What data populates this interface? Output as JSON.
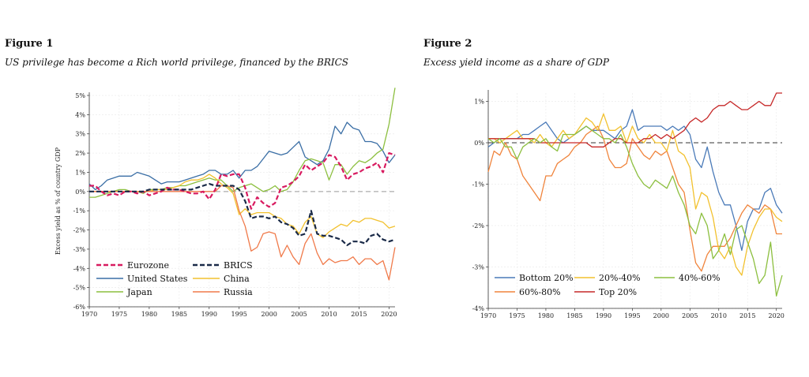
{
  "figures": [
    {
      "label": "Figure 1",
      "subtitle": "US privilege has become a Rich world privilege, financed by the BRICS"
    },
    {
      "label": "Figure 2",
      "subtitle": "Excess yield income as a share of GDP"
    }
  ],
  "chart_data": [
    {
      "type": "line",
      "title": "Figure 1",
      "subtitle": "US privilege has become a Rich world privilege, financed by the BRICS",
      "ylabel": "Excess yield as % of country GDP",
      "xlim": [
        1970,
        2021
      ],
      "ylim": [
        -6,
        5
      ],
      "x_ticks": [
        1970,
        1975,
        1980,
        1985,
        1990,
        1995,
        2000,
        2005,
        2010,
        2015,
        2020
      ],
      "y_ticks": [
        5,
        4,
        3,
        2,
        1,
        0,
        -1,
        -2,
        -3,
        -4,
        -5,
        -6
      ],
      "y_tick_labels": [
        "5%",
        "4%",
        "3%",
        "2%",
        "1%",
        "0%",
        "-1%",
        "-2%",
        "-3%",
        "-4%",
        "-5%",
        "-6%"
      ],
      "reference_line": 0,
      "grid": true,
      "legend_position": "bottom-left",
      "x": [
        1970,
        1971,
        1972,
        1973,
        1974,
        1975,
        1976,
        1977,
        1978,
        1979,
        1980,
        1981,
        1982,
        1983,
        1984,
        1985,
        1986,
        1987,
        1988,
        1989,
        1990,
        1991,
        1992,
        1993,
        1994,
        1995,
        1996,
        1997,
        1998,
        1999,
        2000,
        2001,
        2002,
        2003,
        2004,
        2005,
        2006,
        2007,
        2008,
        2009,
        2010,
        2011,
        2012,
        2013,
        2014,
        2015,
        2016,
        2017,
        2018,
        2019,
        2020,
        2021
      ],
      "series": [
        {
          "name": "United States",
          "color": "#3a6ea5",
          "dash": false,
          "values": [
            0.4,
            0.1,
            0.3,
            0.6,
            0.7,
            0.8,
            0.8,
            0.8,
            1.0,
            0.9,
            0.8,
            0.6,
            0.4,
            0.5,
            0.5,
            0.5,
            0.6,
            0.7,
            0.8,
            0.9,
            1.1,
            1.1,
            0.9,
            0.9,
            1.1,
            0.7,
            1.1,
            1.1,
            1.3,
            1.7,
            2.1,
            2.0,
            1.9,
            2.0,
            2.3,
            2.6,
            1.8,
            1.6,
            1.4,
            1.6,
            2.2,
            3.4,
            3.0,
            3.6,
            3.3,
            3.2,
            2.6,
            2.6,
            2.5,
            2.1,
            1.5,
            1.9
          ]
        },
        {
          "name": "Japan",
          "color": "#8cbf3f",
          "dash": false,
          "values": [
            -0.3,
            -0.3,
            -0.2,
            -0.1,
            0.0,
            0.1,
            0.1,
            0.0,
            0.0,
            -0.1,
            0.1,
            0.1,
            0.1,
            0.2,
            0.2,
            0.3,
            0.3,
            0.4,
            0.5,
            0.6,
            0.7,
            0.6,
            0.6,
            0.3,
            0.0,
            0.2,
            0.3,
            0.4,
            0.2,
            0.0,
            0.1,
            0.3,
            0.0,
            0.1,
            0.5,
            1.1,
            1.6,
            1.7,
            1.6,
            1.5,
            0.6,
            1.4,
            1.4,
            0.9,
            1.3,
            1.6,
            1.5,
            1.7,
            2.0,
            2.2,
            3.5,
            5.4
          ]
        },
        {
          "name": "China",
          "color": "#f2c12e",
          "dash": false,
          "values": [
            0.0,
            0.0,
            0.0,
            0.0,
            0.0,
            0.0,
            0.0,
            0.0,
            0.0,
            0.0,
            0.0,
            0.1,
            0.1,
            0.1,
            0.2,
            0.3,
            0.5,
            0.6,
            0.6,
            0.7,
            0.9,
            0.7,
            0.4,
            0.2,
            -0.1,
            -1.2,
            -0.9,
            -1.2,
            -1.1,
            -1.1,
            -1.1,
            -1.3,
            -1.4,
            -1.7,
            -1.8,
            -2.2,
            -1.6,
            -1.3,
            -2.2,
            -2.4,
            -2.1,
            -1.9,
            -1.7,
            -1.8,
            -1.5,
            -1.6,
            -1.4,
            -1.4,
            -1.5,
            -1.6,
            -1.9,
            -1.8
          ]
        },
        {
          "name": "Russia",
          "color": "#f07a4a",
          "dash": false,
          "values": [
            0.0,
            0.0,
            0.0,
            0.0,
            0.0,
            0.0,
            0.0,
            0.0,
            0.0,
            0.0,
            0.0,
            0.0,
            0.0,
            0.0,
            0.0,
            0.0,
            0.0,
            0.0,
            0.0,
            0.0,
            0.0,
            0.0,
            0.3,
            0.3,
            0.2,
            -1.0,
            -1.8,
            -3.1,
            -2.9,
            -2.2,
            -2.1,
            -2.2,
            -3.4,
            -2.8,
            -3.4,
            -3.8,
            -2.7,
            -2.2,
            -3.2,
            -3.8,
            -3.5,
            -3.7,
            -3.6,
            -3.6,
            -3.4,
            -3.8,
            -3.5,
            -3.5,
            -3.8,
            -3.6,
            -4.6,
            -2.9
          ]
        },
        {
          "name": "Eurozone",
          "color": "#d81b60",
          "dash": true,
          "values": [
            0.3,
            0.3,
            0.0,
            -0.2,
            -0.1,
            -0.2,
            0.0,
            0.0,
            -0.1,
            0.0,
            -0.2,
            -0.1,
            0.0,
            0.2,
            0.1,
            0.1,
            0.0,
            -0.1,
            -0.1,
            0.0,
            -0.4,
            0.1,
            0.9,
            0.8,
            0.9,
            0.9,
            0.2,
            -0.9,
            -0.3,
            -0.6,
            -0.8,
            -0.6,
            0.2,
            0.3,
            0.5,
            0.8,
            1.4,
            1.1,
            1.3,
            1.5,
            1.9,
            1.8,
            1.3,
            0.6,
            0.9,
            1.0,
            1.2,
            1.3,
            1.5,
            1.0,
            2.0,
            1.9
          ]
        },
        {
          "name": "BRICS",
          "color": "#1a2a48",
          "dash": true,
          "values": [
            0.0,
            0.0,
            0.0,
            0.0,
            0.0,
            0.0,
            0.0,
            0.0,
            0.0,
            0.0,
            0.1,
            0.1,
            0.1,
            0.1,
            0.1,
            0.1,
            0.1,
            0.1,
            0.2,
            0.3,
            0.4,
            0.3,
            0.3,
            0.3,
            0.3,
            0.1,
            -0.5,
            -1.4,
            -1.3,
            -1.3,
            -1.4,
            -1.3,
            -1.6,
            -1.7,
            -1.9,
            -2.3,
            -2.2,
            -1.0,
            -2.2,
            -2.3,
            -2.3,
            -2.4,
            -2.5,
            -2.8,
            -2.6,
            -2.6,
            -2.7,
            -2.3,
            -2.2,
            -2.5,
            -2.6,
            -2.5
          ]
        }
      ]
    },
    {
      "type": "line",
      "title": "Figure 2",
      "subtitle": "Excess yield income as a share of GDP",
      "xlim": [
        1970,
        2021
      ],
      "ylim": [
        -4,
        1.2
      ],
      "x_ticks": [
        1970,
        1975,
        1980,
        1985,
        1990,
        1995,
        2000,
        2005,
        2010,
        2015,
        2020
      ],
      "y_ticks": [
        1,
        0,
        -1,
        -2,
        -3,
        -4
      ],
      "y_tick_labels": [
        "1%",
        "0%",
        "-1%",
        "-2%",
        "-3%",
        "-4%"
      ],
      "reference_line": 0,
      "grid": true,
      "legend_position": "bottom-left",
      "x": [
        1970,
        1971,
        1972,
        1973,
        1974,
        1975,
        1976,
        1977,
        1978,
        1979,
        1980,
        1981,
        1982,
        1983,
        1984,
        1985,
        1986,
        1987,
        1988,
        1989,
        1990,
        1991,
        1992,
        1993,
        1994,
        1995,
        1996,
        1997,
        1998,
        1999,
        2000,
        2001,
        2002,
        2003,
        2004,
        2005,
        2006,
        2007,
        2008,
        2009,
        2010,
        2011,
        2012,
        2013,
        2014,
        2015,
        2016,
        2017,
        2018,
        2019,
        2020,
        2021
      ],
      "series": [
        {
          "name": "Bottom 20%",
          "color": "#4a7ab8",
          "dash": false,
          "values": [
            -0.1,
            0.0,
            0.1,
            0.1,
            0.1,
            0.1,
            0.2,
            0.2,
            0.3,
            0.4,
            0.5,
            0.3,
            0.1,
            0.0,
            0.1,
            0.2,
            0.3,
            0.4,
            0.3,
            0.3,
            0.3,
            0.2,
            0.1,
            0.3,
            0.4,
            0.8,
            0.3,
            0.4,
            0.4,
            0.4,
            0.4,
            0.3,
            0.4,
            0.3,
            0.4,
            0.2,
            -0.4,
            -0.6,
            -0.1,
            -0.7,
            -1.2,
            -1.5,
            -1.5,
            -2.0,
            -2.6,
            -1.9,
            -1.6,
            -1.6,
            -1.2,
            -1.1,
            -1.5,
            -1.7
          ]
        },
        {
          "name": "60%-80%",
          "color": "#f0843c",
          "dash": false,
          "values": [
            -0.7,
            -0.2,
            -0.3,
            0.0,
            -0.3,
            -0.4,
            -0.8,
            -1.0,
            -1.2,
            -1.4,
            -0.8,
            -0.8,
            -0.5,
            -0.4,
            -0.3,
            -0.1,
            0.0,
            0.2,
            0.3,
            0.4,
            0.1,
            -0.4,
            -0.6,
            -0.6,
            -0.5,
            0.1,
            -0.1,
            -0.3,
            -0.4,
            -0.2,
            -0.3,
            -0.2,
            -0.6,
            -1.0,
            -1.2,
            -2.1,
            -2.9,
            -3.1,
            -2.7,
            -2.5,
            -2.5,
            -2.5,
            -2.3,
            -2.0,
            -1.7,
            -1.5,
            -1.6,
            -1.7,
            -1.5,
            -1.6,
            -2.2,
            -2.2
          ]
        },
        {
          "name": "20%-40%",
          "color": "#f2c12e",
          "dash": false,
          "values": [
            0.1,
            0.1,
            0.0,
            0.1,
            0.2,
            0.3,
            0.1,
            0.1,
            0.0,
            0.2,
            0.0,
            -0.1,
            0.1,
            0.3,
            0.1,
            0.2,
            0.4,
            0.6,
            0.5,
            0.3,
            0.7,
            0.3,
            0.3,
            0.4,
            0.0,
            0.4,
            0.1,
            0.0,
            0.2,
            0.0,
            0.0,
            -0.2,
            0.3,
            -0.2,
            -0.3,
            -0.6,
            -1.6,
            -1.2,
            -1.3,
            -1.8,
            -2.6,
            -2.8,
            -2.5,
            -3.0,
            -3.2,
            -2.5,
            -2.1,
            -1.8,
            -1.6,
            -1.6,
            -1.8,
            -1.9
          ]
        },
        {
          "name": "Top 20%",
          "color": "#c62828",
          "dash": false,
          "values": [
            0.1,
            0.1,
            0.1,
            0.1,
            0.1,
            0.1,
            0.1,
            0.1,
            0.1,
            0.0,
            0.0,
            0.0,
            0.0,
            0.0,
            0.0,
            0.0,
            0.0,
            0.0,
            -0.1,
            -0.1,
            -0.1,
            0.0,
            0.1,
            0.1,
            0.0,
            0.0,
            0.0,
            0.1,
            0.1,
            0.2,
            0.1,
            0.2,
            0.1,
            0.2,
            0.3,
            0.5,
            0.6,
            0.5,
            0.6,
            0.8,
            0.9,
            0.9,
            1.0,
            0.9,
            0.8,
            0.8,
            0.9,
            1.0,
            0.9,
            0.9,
            1.2,
            1.2
          ]
        },
        {
          "name": "40%-60%",
          "color": "#8cbf3f",
          "dash": false,
          "values": [
            0.1,
            0.0,
            0.1,
            -0.1,
            -0.1,
            -0.4,
            -0.1,
            0.0,
            0.1,
            0.0,
            0.1,
            -0.1,
            -0.2,
            0.2,
            0.2,
            0.2,
            0.3,
            0.4,
            0.3,
            0.2,
            0.1,
            0.1,
            0.0,
            0.2,
            -0.1,
            -0.5,
            -0.8,
            -1.0,
            -1.1,
            -0.9,
            -1.0,
            -1.1,
            -0.8,
            -1.2,
            -1.5,
            -2.0,
            -2.2,
            -1.7,
            -2.0,
            -2.8,
            -2.6,
            -2.2,
            -2.7,
            -2.1,
            -2.0,
            -2.4,
            -2.8,
            -3.4,
            -3.2,
            -2.4,
            -3.7,
            -3.2
          ]
        }
      ]
    }
  ]
}
